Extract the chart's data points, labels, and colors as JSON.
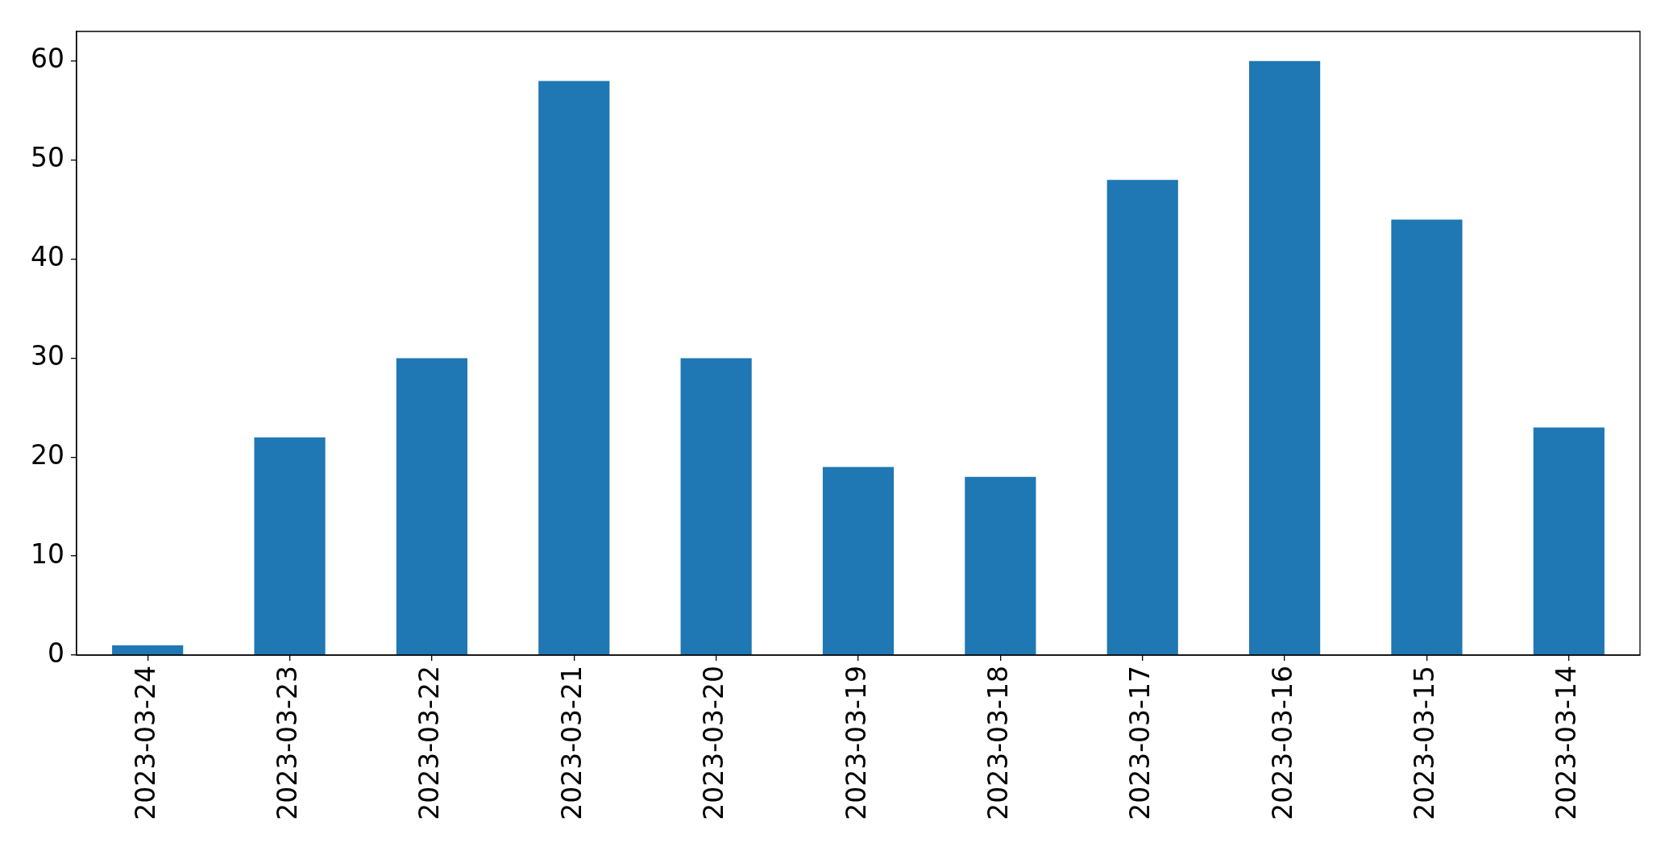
{
  "chart_data": {
    "type": "bar",
    "categories": [
      "2023-03-24",
      "2023-03-23",
      "2023-03-22",
      "2023-03-21",
      "2023-03-20",
      "2023-03-19",
      "2023-03-18",
      "2023-03-17",
      "2023-03-16",
      "2023-03-15",
      "2023-03-14"
    ],
    "values": [
      1,
      22,
      30,
      58,
      30,
      19,
      18,
      48,
      60,
      44,
      23
    ],
    "color": "#1f77b4",
    "ylim": [
      0,
      63
    ],
    "yticks": [
      0,
      10,
      20,
      30,
      40,
      50,
      60
    ],
    "grid": false
  }
}
